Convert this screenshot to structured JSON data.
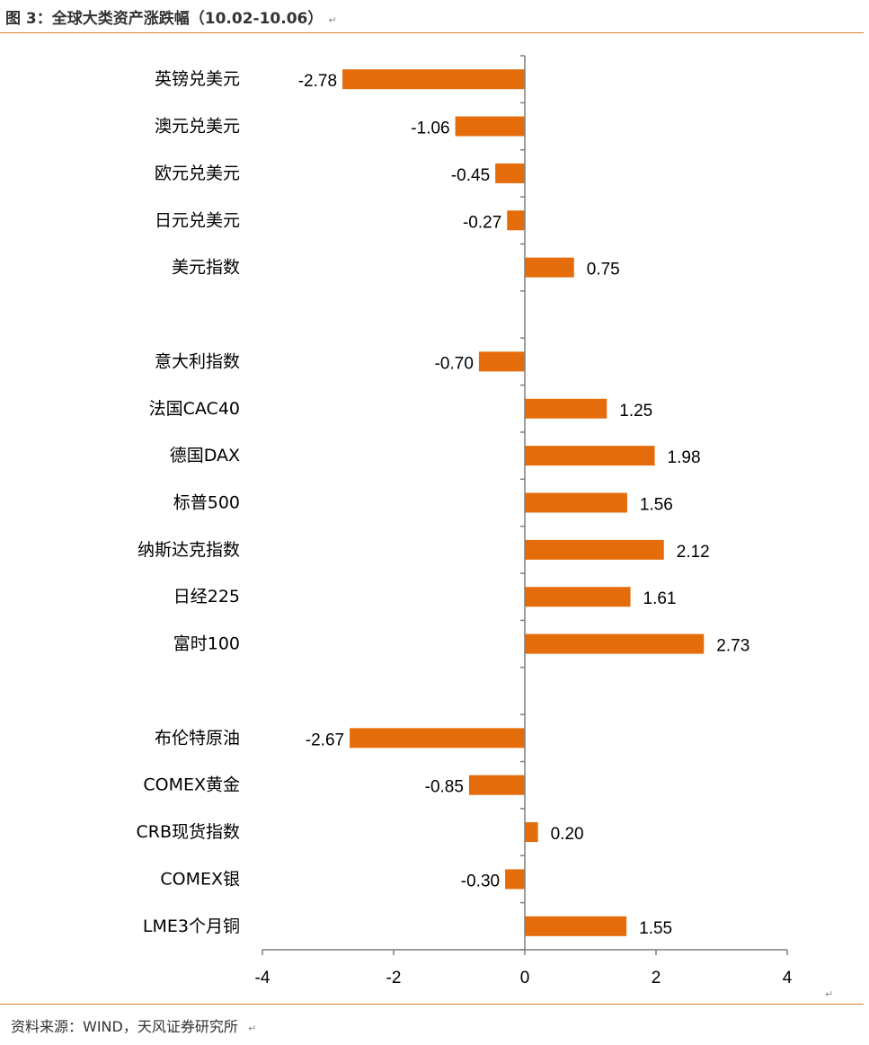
{
  "header": {
    "title": "图 3：全球大类资产涨跌幅（10.02-10.06）",
    "return_mark": "↵"
  },
  "footer": {
    "source": "资料来源：WIND，天风证券研究所",
    "return_mark": "↵"
  },
  "colors": {
    "bar": "#e46c0a",
    "axis": "#7f7f7f",
    "accent_line": "#d9822b"
  },
  "chart_data": {
    "type": "bar",
    "orientation": "horizontal",
    "title": "",
    "xlabel": "",
    "ylabel": "",
    "xlim": [
      -4,
      4
    ],
    "x_ticks": [
      "-4",
      "-2",
      "0",
      "2",
      "4"
    ],
    "grid": false,
    "legend": "none",
    "categories": [
      "英镑兑美元",
      "澳元兑美元",
      "欧元兑美元",
      "日元兑美元",
      "美元指数",
      "",
      "意大利指数",
      "法国CAC40",
      "德国DAX",
      "标普500",
      "纳斯达克指数",
      "日经225",
      "富时100",
      "",
      "布伦特原油",
      "COMEX黄金",
      "CRB现货指数",
      "COMEX银",
      "LME3个月铜"
    ],
    "values": [
      -2.78,
      -1.06,
      -0.45,
      -0.27,
      0.75,
      null,
      -0.7,
      1.25,
      1.98,
      1.56,
      2.12,
      1.61,
      2.73,
      null,
      -2.67,
      -0.85,
      0.2,
      -0.3,
      1.55
    ],
    "data_labels": [
      "-2.78",
      "-1.06",
      "-0.45",
      "-0.27",
      "0.75",
      "",
      "-0.70",
      "1.25",
      "1.98",
      "1.56",
      "2.12",
      "1.61",
      "2.73",
      "",
      "-2.67",
      "-0.85",
      "0.20",
      "-0.30",
      "1.55"
    ]
  }
}
